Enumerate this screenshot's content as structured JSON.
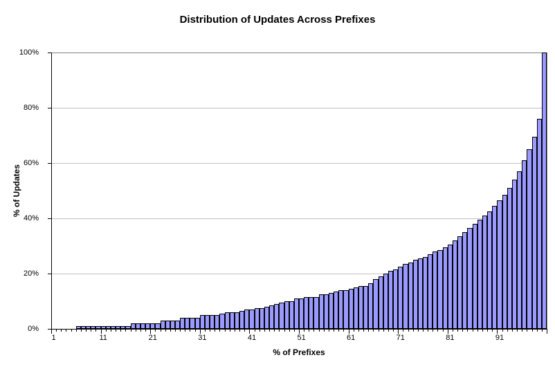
{
  "chart_data": {
    "type": "bar",
    "title": "Distribution of Updates Across Prefixes",
    "xlabel": "% of Prefixes",
    "ylabel": "% of Updates",
    "xlim": [
      1,
      100
    ],
    "ylim": [
      0,
      100
    ],
    "grid": "horizontal-major",
    "legend": "none",
    "x_tick_labels": [
      "1",
      "11",
      "21",
      "31",
      "41",
      "51",
      "61",
      "71",
      "81",
      "91"
    ],
    "y_tick_labels": [
      "0%",
      "20%",
      "40%",
      "60%",
      "80%",
      "100%"
    ],
    "x": [
      1,
      2,
      3,
      4,
      5,
      6,
      7,
      8,
      9,
      10,
      11,
      12,
      13,
      14,
      15,
      16,
      17,
      18,
      19,
      20,
      21,
      22,
      23,
      24,
      25,
      26,
      27,
      28,
      29,
      30,
      31,
      32,
      33,
      34,
      35,
      36,
      37,
      38,
      39,
      40,
      41,
      42,
      43,
      44,
      45,
      46,
      47,
      48,
      49,
      50,
      51,
      52,
      53,
      54,
      55,
      56,
      57,
      58,
      59,
      60,
      61,
      62,
      63,
      64,
      65,
      66,
      67,
      68,
      69,
      70,
      71,
      72,
      73,
      74,
      75,
      76,
      77,
      78,
      79,
      80,
      81,
      82,
      83,
      84,
      85,
      86,
      87,
      88,
      89,
      90,
      91,
      92,
      93,
      94,
      95,
      96,
      97,
      98,
      99,
      100
    ],
    "values": [
      0,
      0,
      0,
      0,
      0,
      1,
      1,
      1,
      1,
      1,
      1,
      1,
      1,
      1,
      1,
      1,
      2,
      2,
      2,
      2,
      2,
      2,
      3,
      3,
      3,
      3,
      4,
      4,
      4,
      4,
      5,
      5,
      5,
      5,
      5.5,
      6,
      6,
      6,
      6.5,
      7,
      7,
      7.5,
      7.5,
      8,
      8.5,
      9,
      9.5,
      10,
      10,
      11,
      11,
      11.5,
      11.5,
      11.5,
      12.5,
      12.5,
      13,
      13.5,
      14,
      14,
      14.5,
      15,
      15.5,
      15.5,
      16.5,
      18,
      19,
      20,
      21,
      21.5,
      22.5,
      23.5,
      24,
      25,
      25.5,
      26,
      27,
      28,
      28.5,
      29.5,
      30.5,
      32,
      33.5,
      35,
      36.5,
      38,
      39.5,
      41,
      42.5,
      44.5,
      46.5,
      48.5,
      51,
      54,
      57,
      61,
      65,
      69.5,
      76,
      100
    ],
    "colors": {
      "bar_fill": "#9999FF",
      "bar_border": "#000000",
      "gridline": "#C0C0C0",
      "frame": "#808080",
      "axis": "#000000",
      "background": "#FFFFFF",
      "text": "#000000"
    }
  }
}
